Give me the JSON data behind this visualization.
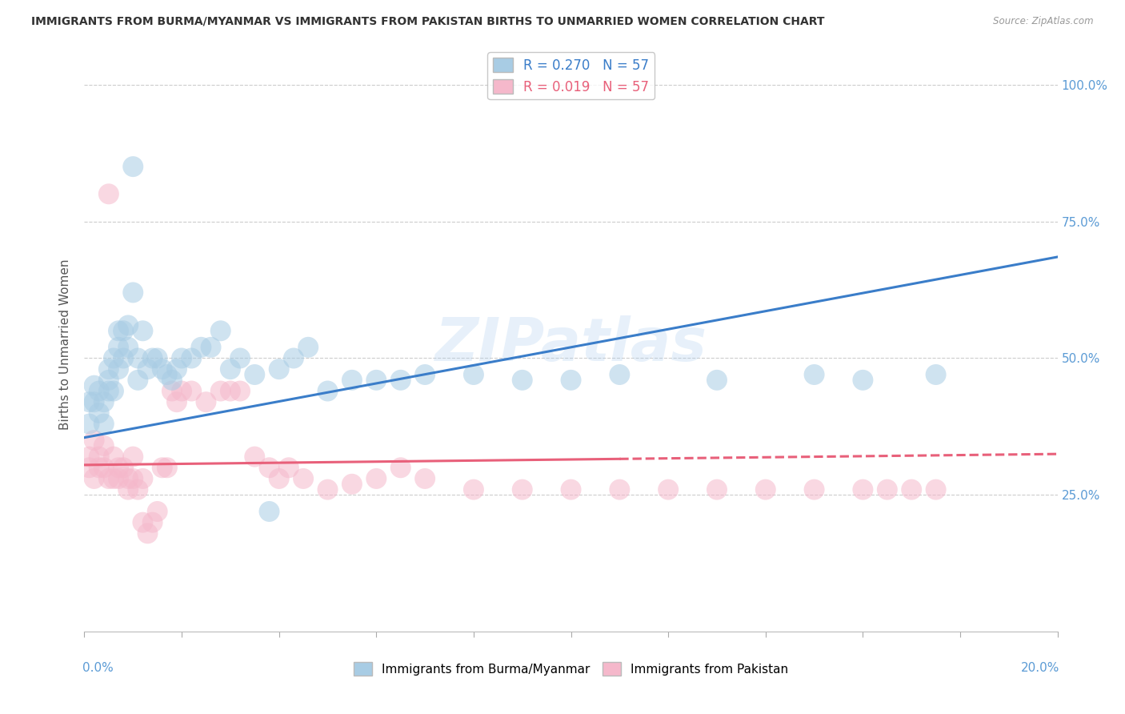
{
  "title": "IMMIGRANTS FROM BURMA/MYANMAR VS IMMIGRANTS FROM PAKISTAN BIRTHS TO UNMARRIED WOMEN CORRELATION CHART",
  "source": "Source: ZipAtlas.com",
  "ylabel_label": "Births to Unmarried Women",
  "legend_blue_r": "R = 0.270",
  "legend_blue_n": "N = 57",
  "legend_pink_r": "R = 0.019",
  "legend_pink_n": "N = 57",
  "legend_label_blue": "Immigrants from Burma/Myanmar",
  "legend_label_pink": "Immigrants from Pakistan",
  "blue_color": "#a8cce4",
  "pink_color": "#f5b8cb",
  "line_blue": "#3a7dc9",
  "line_pink": "#e8607a",
  "watermark": "ZIPatlas",
  "gridline_color": "#cccccc",
  "blue_x": [
    0.001,
    0.001,
    0.002,
    0.002,
    0.003,
    0.003,
    0.004,
    0.004,
    0.005,
    0.005,
    0.005,
    0.006,
    0.006,
    0.007,
    0.007,
    0.007,
    0.008,
    0.008,
    0.009,
    0.009,
    0.01,
    0.01,
    0.011,
    0.011,
    0.012,
    0.013,
    0.014,
    0.015,
    0.016,
    0.017,
    0.018,
    0.019,
    0.02,
    0.022,
    0.024,
    0.026,
    0.028,
    0.03,
    0.032,
    0.035,
    0.038,
    0.04,
    0.043,
    0.046,
    0.05,
    0.055,
    0.06,
    0.065,
    0.07,
    0.08,
    0.09,
    0.1,
    0.11,
    0.13,
    0.15,
    0.16,
    0.175
  ],
  "blue_y": [
    0.38,
    0.42,
    0.42,
    0.45,
    0.4,
    0.44,
    0.38,
    0.42,
    0.44,
    0.46,
    0.48,
    0.44,
    0.5,
    0.48,
    0.52,
    0.55,
    0.5,
    0.55,
    0.52,
    0.56,
    0.85,
    0.62,
    0.5,
    0.46,
    0.55,
    0.48,
    0.5,
    0.5,
    0.48,
    0.47,
    0.46,
    0.48,
    0.5,
    0.5,
    0.52,
    0.52,
    0.55,
    0.48,
    0.5,
    0.47,
    0.22,
    0.48,
    0.5,
    0.52,
    0.44,
    0.46,
    0.46,
    0.46,
    0.47,
    0.47,
    0.46,
    0.46,
    0.47,
    0.46,
    0.47,
    0.46,
    0.47
  ],
  "pink_x": [
    0.001,
    0.001,
    0.002,
    0.002,
    0.003,
    0.003,
    0.004,
    0.004,
    0.005,
    0.005,
    0.006,
    0.006,
    0.007,
    0.007,
    0.008,
    0.009,
    0.009,
    0.01,
    0.01,
    0.011,
    0.012,
    0.012,
    0.013,
    0.014,
    0.015,
    0.016,
    0.017,
    0.018,
    0.019,
    0.02,
    0.022,
    0.025,
    0.028,
    0.03,
    0.032,
    0.035,
    0.038,
    0.04,
    0.042,
    0.045,
    0.05,
    0.055,
    0.06,
    0.065,
    0.07,
    0.08,
    0.09,
    0.1,
    0.11,
    0.12,
    0.13,
    0.14,
    0.15,
    0.16,
    0.165,
    0.17,
    0.175
  ],
  "pink_y": [
    0.32,
    0.3,
    0.28,
    0.35,
    0.3,
    0.32,
    0.34,
    0.3,
    0.8,
    0.28,
    0.32,
    0.28,
    0.3,
    0.28,
    0.3,
    0.26,
    0.28,
    0.32,
    0.28,
    0.26,
    0.2,
    0.28,
    0.18,
    0.2,
    0.22,
    0.3,
    0.3,
    0.44,
    0.42,
    0.44,
    0.44,
    0.42,
    0.44,
    0.44,
    0.44,
    0.32,
    0.3,
    0.28,
    0.3,
    0.28,
    0.26,
    0.27,
    0.28,
    0.3,
    0.28,
    0.26,
    0.26,
    0.26,
    0.26,
    0.26,
    0.26,
    0.26,
    0.26,
    0.26,
    0.26,
    0.26,
    0.26
  ],
  "xlim": [
    0.0,
    0.2
  ],
  "ylim": [
    0.0,
    1.05
  ],
  "ytick_vals": [
    0.25,
    0.5,
    0.75,
    1.0
  ],
  "ytick_labels": [
    "25.0%",
    "50.0%",
    "75.0%",
    "100.0%"
  ],
  "xtick_vals": [
    0.0,
    0.02,
    0.04,
    0.06,
    0.08,
    0.1,
    0.12,
    0.14,
    0.16,
    0.18,
    0.2
  ],
  "axis_label_color": "#5b9bd5",
  "title_color": "#333333",
  "ylabel_color": "#555555",
  "background_color": "#ffffff",
  "blue_line_intercept": 0.355,
  "blue_line_slope": 1.65,
  "pink_line_intercept": 0.305,
  "pink_line_slope": 0.1
}
